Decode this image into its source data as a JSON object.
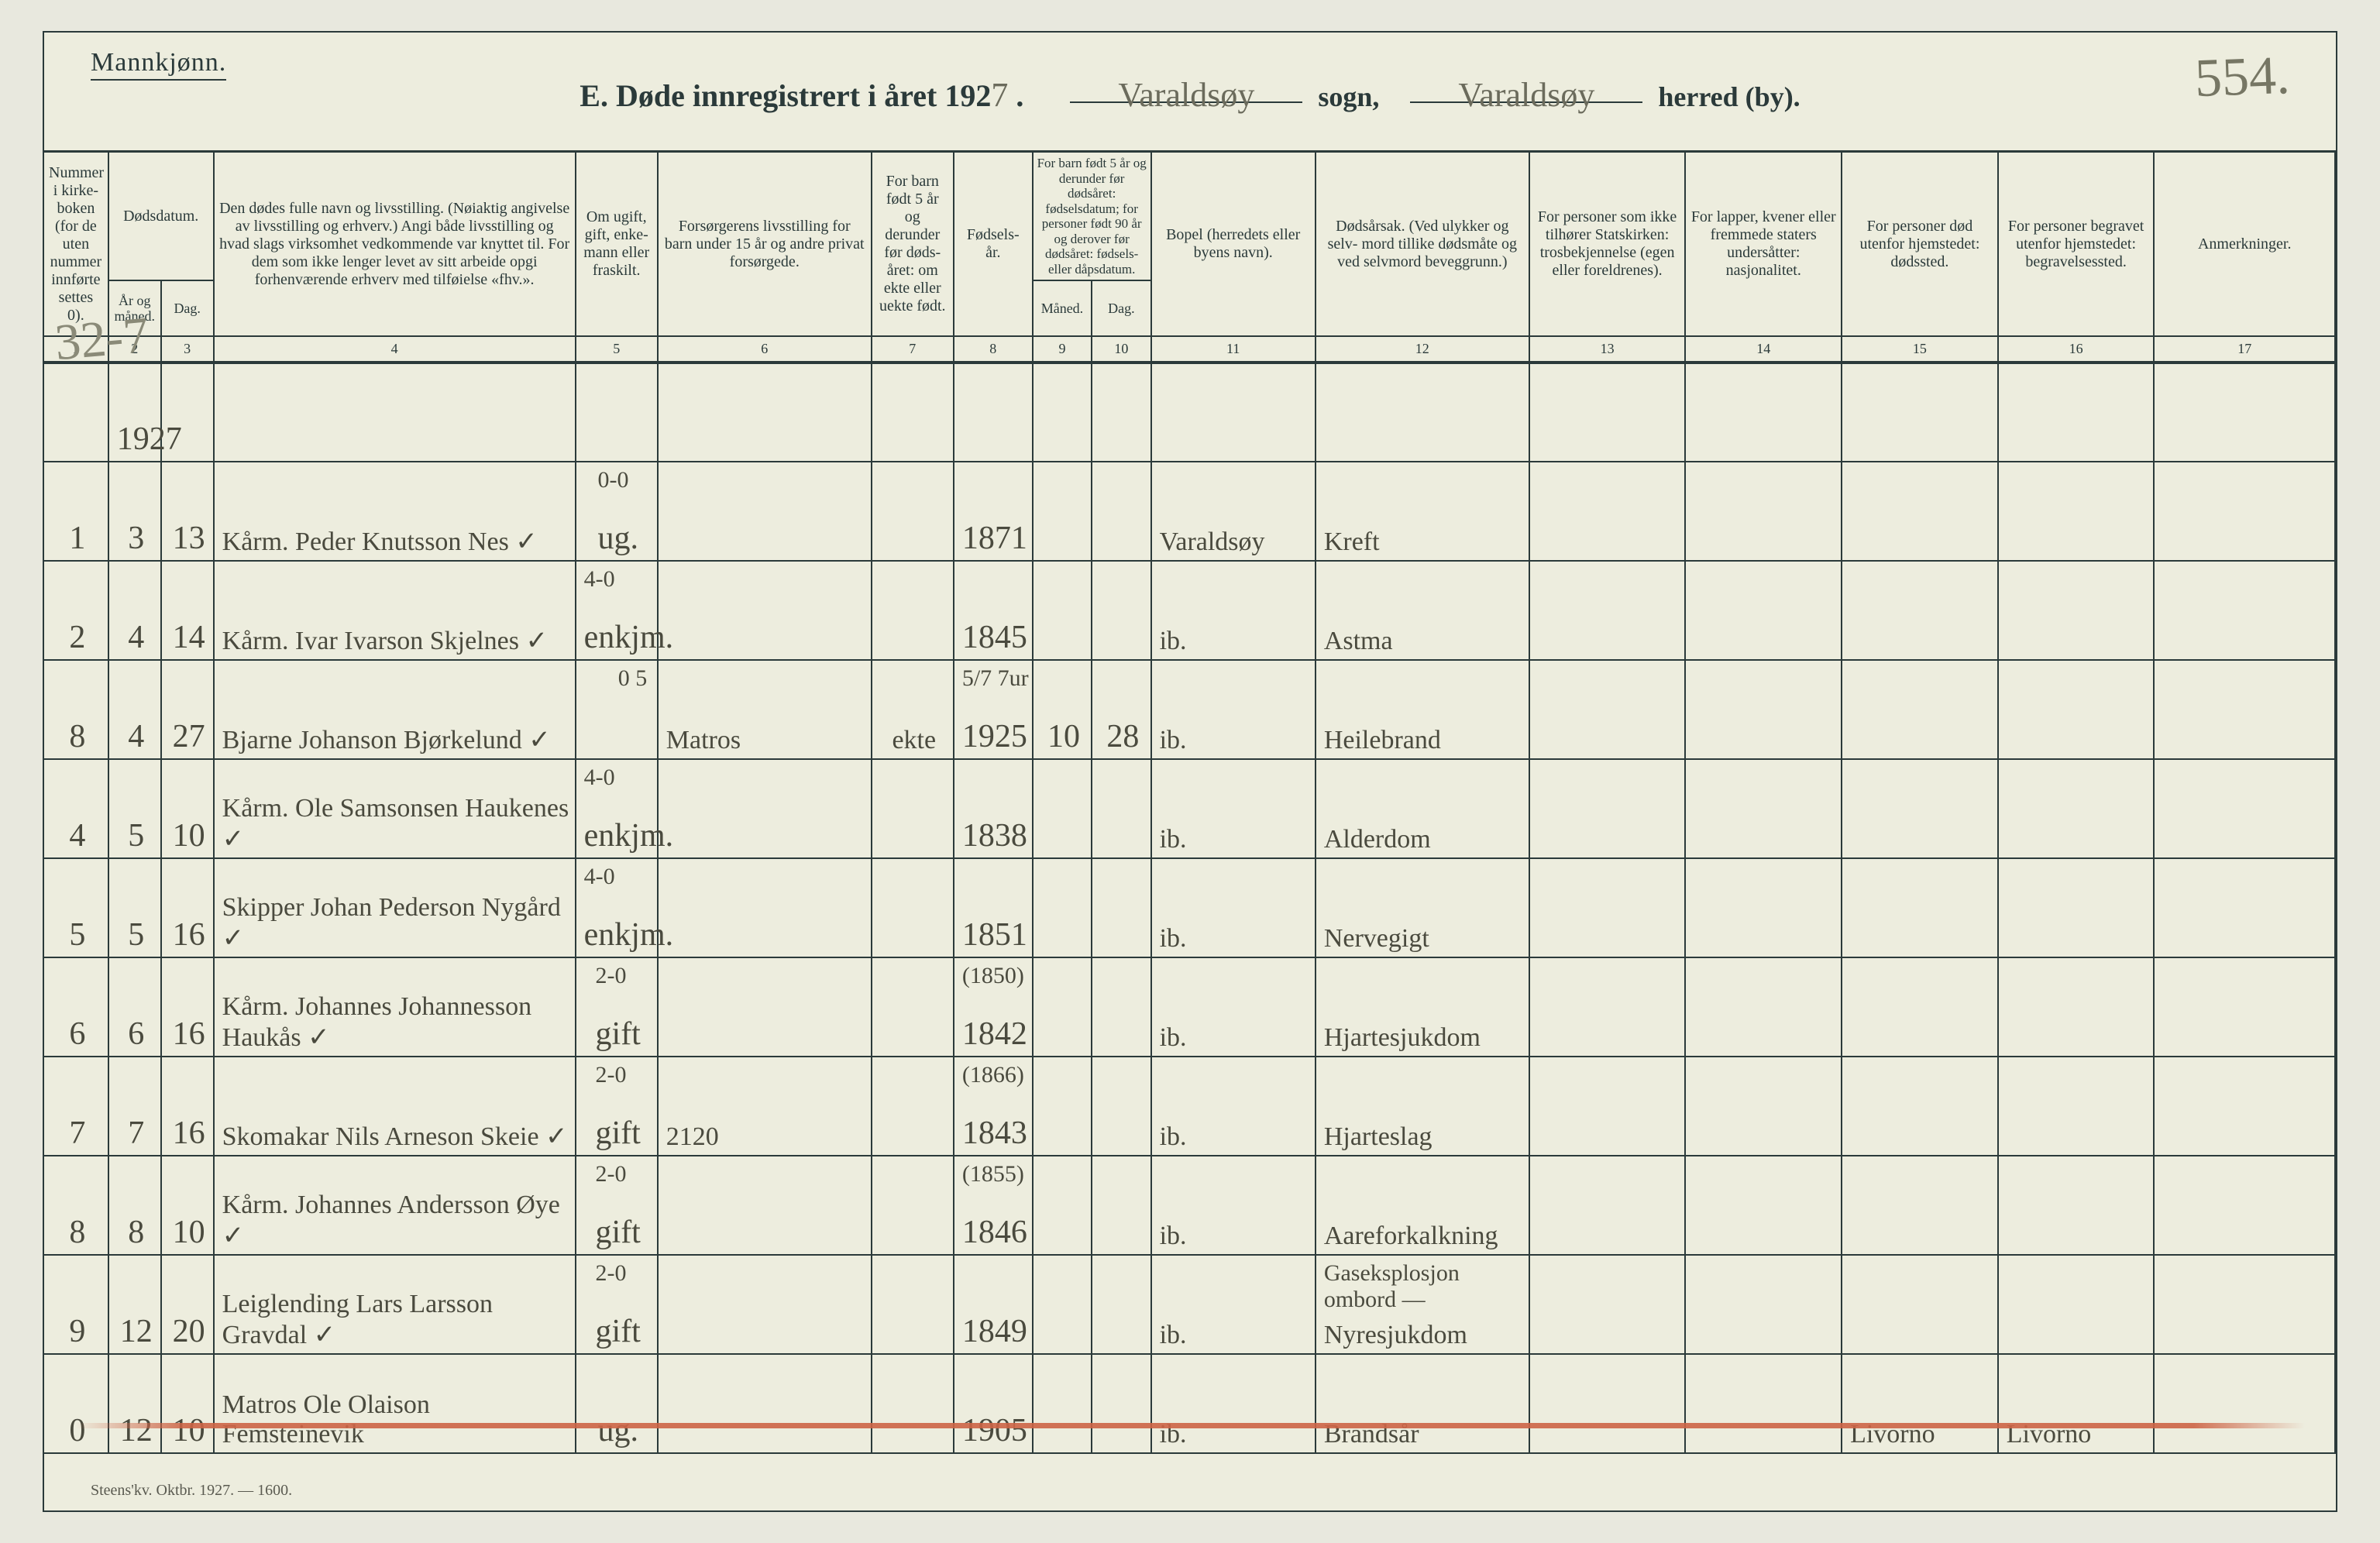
{
  "colors": {
    "paper": "#ededde",
    "ink": "#2b3a3a",
    "script": "#4a4a3e",
    "script_light": "#6b6b5c",
    "red_stroke": "#cd6446",
    "border": "#2b3a3a"
  },
  "header": {
    "gender": "Mannkjønn.",
    "title_prefix": "E.  Døde innregistrert i året 192",
    "year_digit": "7",
    "sogn_value": "Varaldsøy",
    "sogn_label": "sogn,",
    "herred_value": "Varaldsøy",
    "herred_label": "herred (by).",
    "page_number": "554."
  },
  "margin_note": "32-7",
  "footer": "Steens'kv. Oktbr. 1927. — 1600.",
  "columns": {
    "c1": "Nummer i kirke- boken (for de uten nummer innførte settes 0).",
    "c2_top": "Dødsdatum.",
    "c2a": "År og måned.",
    "c2b": "Dag.",
    "c4": "Den dødes fulle navn og livsstilling. (Nøiaktig angivelse av livsstilling og erhverv.) Angi både livsstilling og hvad slags virksomhet vedkommende var knyttet til. For dem som ikke lenger levet av sitt arbeide opgi forhenværende erhverv med tilføielse «fhv.».",
    "c5": "Om ugift, gift, enke- mann eller fraskilt.",
    "c6": "Forsørgerens livsstilling for barn under 15 år og andre privat forsørgede.",
    "c7": "For barn født 5 år og derunder før døds- året: om ekte eller uekte født.",
    "c8": "Fødsels- år.",
    "c9_top": "For barn født 5 år og derunder før dødsåret: fødselsdatum; for personer født 90 år og derover før dødsåret: fødsels- eller dåpsdatum.",
    "c9a": "Måned.",
    "c9b": "Dag.",
    "c11": "Bopel (herredets eller byens navn).",
    "c12": "Dødsårsak. (Ved ulykker og selv- mord tillike dødsmåte og ved selvmord beveggrunn.)",
    "c13": "For personer som ikke tilhører Statskirken: trosbekjennelse (egen eller foreldrenes).",
    "c14": "For lapper, kvener eller fremmede staters undersåtter: nasjonalitet.",
    "c15": "For personer død utenfor hjemstedet: dødssted.",
    "c16": "For personer begravet utenfor hjemstedet: begravelsessted.",
    "c17": "Anmerkninger."
  },
  "colnums": [
    "1",
    "2",
    "3",
    "4",
    "5",
    "6",
    "7",
    "8",
    "9",
    "10",
    "11",
    "12",
    "13",
    "14",
    "15",
    "16",
    "17"
  ],
  "year_row": "1927",
  "rows": [
    {
      "n": "1",
      "mnd": "3",
      "dag": "13",
      "name": "Kårm. Peder Knutsson Nes  ✓",
      "status_up": "0-0",
      "status": "ug.",
      "provider": "",
      "ekte": "",
      "faar": "1871",
      "fmd": "",
      "fdg": "",
      "bopel": "Varaldsøy",
      "cause": "Kreft",
      "rel": "",
      "nat": "",
      "dsted": "",
      "bsted": "",
      "anm": ""
    },
    {
      "n": "2",
      "mnd": "4",
      "dag": "14",
      "name": "Kårm. Ivar Ivarson Skjelnes  ✓",
      "status_up": "4-0",
      "status": "enkjm.",
      "provider": "",
      "ekte": "",
      "faar": "1845",
      "fmd": "",
      "fdg": "",
      "bopel": "ib.",
      "cause": "Astma",
      "rel": "",
      "nat": "",
      "dsted": "",
      "bsted": "",
      "anm": ""
    },
    {
      "n": "8",
      "mnd": "4",
      "dag": "27",
      "name": "Bjarne Johanson Bjørkelund  ✓",
      "status_up": "0 5",
      "status": "",
      "provider": "Matros",
      "ekte": "ekte",
      "faar": "1925",
      "fmd": "10",
      "fdg": "28",
      "bopel": "ib.",
      "cause": "Heilebrand",
      "rel": "",
      "nat": "",
      "dsted": "",
      "bsted": "",
      "anm": "",
      "faar_note": "5/7 7ur"
    },
    {
      "n": "4",
      "mnd": "5",
      "dag": "10",
      "name": "Kårm. Ole Samsonsen Haukenes  ✓",
      "status_up": "4-0",
      "status": "enkjm.",
      "provider": "",
      "ekte": "",
      "faar": "1838",
      "fmd": "",
      "fdg": "",
      "bopel": "ib.",
      "cause": "Alderdom",
      "rel": "",
      "nat": "",
      "dsted": "",
      "bsted": "",
      "anm": ""
    },
    {
      "n": "5",
      "mnd": "5",
      "dag": "16",
      "name": "Skipper Johan Pederson Nygård  ✓",
      "status_up": "4-0",
      "status": "enkjm.",
      "provider": "",
      "ekte": "",
      "faar": "1851",
      "fmd": "",
      "fdg": "",
      "bopel": "ib.",
      "cause": "Nervegigt",
      "rel": "",
      "nat": "",
      "dsted": "",
      "bsted": "",
      "anm": ""
    },
    {
      "n": "6",
      "mnd": "6",
      "dag": "16",
      "name": "Kårm. Johannes Johannesson Haukås  ✓",
      "status_up": "2-0",
      "status": "gift",
      "provider": "",
      "ekte": "",
      "faar": "1842",
      "fmd": "",
      "fdg": "",
      "faar_note": "(1850)",
      "bopel": "ib.",
      "cause": "Hjartesjukdom",
      "rel": "",
      "nat": "",
      "dsted": "",
      "bsted": "",
      "anm": ""
    },
    {
      "n": "7",
      "mnd": "7",
      "dag": "16",
      "name": "Skomakar Nils Arneson Skeie  ✓",
      "status_up": "2-0",
      "status": "gift",
      "provider": "2120",
      "ekte": "",
      "faar": "1843",
      "fmd": "",
      "fdg": "",
      "faar_note": "(1866)",
      "bopel": "ib.",
      "cause": "Hjarteslag",
      "rel": "",
      "nat": "",
      "dsted": "",
      "bsted": "",
      "anm": ""
    },
    {
      "n": "8",
      "mnd": "8",
      "dag": "10",
      "name": "Kårm. Johannes Andersson Øye  ✓",
      "status_up": "2-0",
      "status": "gift",
      "provider": "",
      "ekte": "",
      "faar": "1846",
      "fmd": "",
      "fdg": "",
      "faar_note": "(1855)",
      "bopel": "ib.",
      "cause": "Aareforkalkning",
      "rel": "",
      "nat": "",
      "dsted": "",
      "bsted": "",
      "anm": ""
    },
    {
      "n": "9",
      "mnd": "12",
      "dag": "20",
      "name": "Leiglending Lars Larsson Gravdal  ✓",
      "status_up": "2-0",
      "status": "gift",
      "provider": "",
      "ekte": "",
      "faar": "1849",
      "fmd": "",
      "fdg": "",
      "bopel": "ib.",
      "cause": "Nyresjukdom",
      "cause_note": "Gaseksplosjon ombord —",
      "rel": "",
      "nat": "",
      "dsted": "",
      "bsted": "",
      "anm": ""
    },
    {
      "n": "0",
      "mnd": "12",
      "dag": "10",
      "name": "Matros Ole Olaison Femsteinevik",
      "status_up": "",
      "status": "ug.",
      "provider": "",
      "ekte": "",
      "faar": "1905",
      "fmd": "",
      "fdg": "",
      "bopel": "ib.",
      "cause": "Brandsår",
      "rel": "",
      "nat": "",
      "dsted": "Livorno",
      "bsted": "Livorno",
      "anm": ""
    }
  ]
}
